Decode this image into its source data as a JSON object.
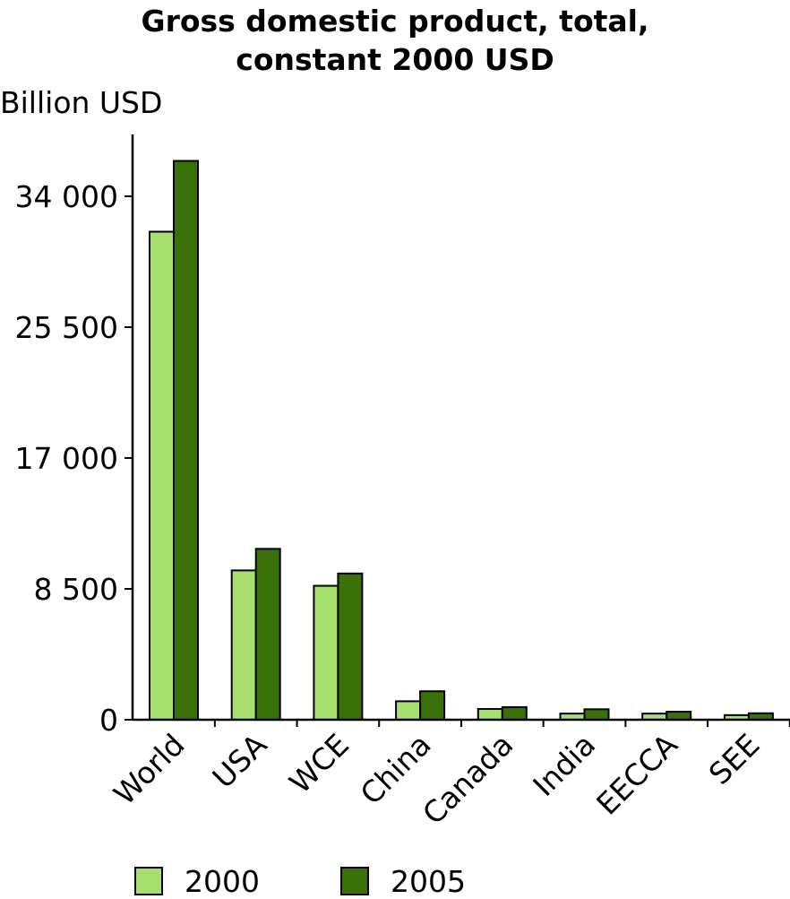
{
  "chart_data": {
    "type": "bar",
    "title_lines": [
      "Gross domestic product, total,",
      "constant 2000 USD"
    ],
    "ylabel": "Billion USD",
    "xlabel": "",
    "categories": [
      "World",
      "USA",
      "WCE",
      "China",
      "Canada",
      "India",
      "EECCA",
      "SEE"
    ],
    "series": [
      {
        "name": "2000",
        "color": "#a8e070",
        "values": [
          31700,
          9700,
          8700,
          1200,
          700,
          400,
          400,
          300
        ]
      },
      {
        "name": "2005",
        "color": "#3a7008",
        "values": [
          36300,
          11100,
          9500,
          1850,
          820,
          680,
          520,
          420
        ]
      }
    ],
    "yticks": [
      0,
      8500,
      17000,
      25500,
      34000
    ],
    "ytick_labels": [
      "0",
      "8 500",
      "17 000",
      "25 500",
      "34 000"
    ],
    "ylim": [
      0,
      38000
    ],
    "legend_position": "bottom",
    "grid": false
  }
}
